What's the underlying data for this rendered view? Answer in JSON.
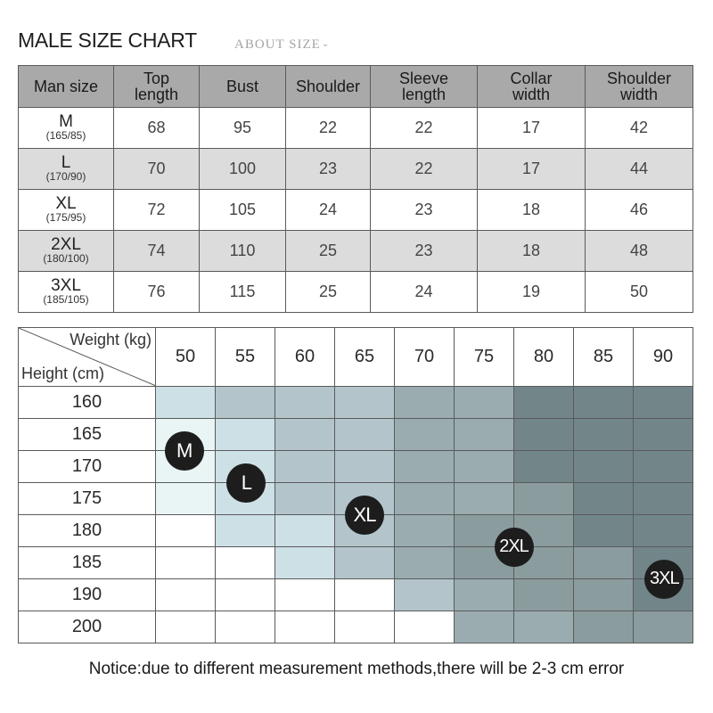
{
  "header": {
    "title": "MALE SIZE CHART",
    "about": "ABOUT SIZE",
    "about_icon": "chevron-down-icon"
  },
  "size_table": {
    "columns": [
      [
        "Man size"
      ],
      [
        "Top",
        "length"
      ],
      [
        "Bust"
      ],
      [
        "Shoulder"
      ],
      [
        "Sleeve",
        "length"
      ],
      [
        "Collar",
        "width"
      ],
      [
        "Shoulder",
        "width"
      ]
    ],
    "rows": [
      {
        "size": "M",
        "sub": "(165/85)",
        "values": [
          "68",
          "95",
          "22",
          "22",
          "17",
          "42"
        ]
      },
      {
        "size": "L",
        "sub": "(170/90)",
        "values": [
          "70",
          "100",
          "23",
          "22",
          "17",
          "44"
        ]
      },
      {
        "size": "XL",
        "sub": "(175/95)",
        "values": [
          "72",
          "105",
          "24",
          "23",
          "18",
          "46"
        ]
      },
      {
        "size": "2XL",
        "sub": "(180/100)",
        "values": [
          "74",
          "110",
          "25",
          "23",
          "18",
          "48"
        ]
      },
      {
        "size": "3XL",
        "sub": "(185/105)",
        "values": [
          "76",
          "115",
          "25",
          "24",
          "19",
          "50"
        ]
      }
    ]
  },
  "fit_table": {
    "weight_label": "Weight (kg)",
    "height_label": "Height (cm)",
    "weights": [
      "50",
      "55",
      "60",
      "65",
      "70",
      "75",
      "80",
      "85",
      "90"
    ],
    "heights": [
      "160",
      "165",
      "170",
      "175",
      "180",
      "185",
      "190",
      "200"
    ],
    "shade_colors": [
      "#ffffff",
      "#e9f4f5",
      "#cde0e5",
      "#b3c5ca",
      "#9aacb0",
      "#8b9c9f",
      "#72868a"
    ],
    "levels": [
      [
        2,
        3,
        3,
        3,
        4,
        4,
        6,
        6,
        6
      ],
      [
        1,
        2,
        3,
        3,
        4,
        4,
        6,
        6,
        6
      ],
      [
        1,
        2,
        3,
        3,
        4,
        4,
        6,
        6,
        6
      ],
      [
        1,
        2,
        3,
        3,
        4,
        4,
        5,
        6,
        6
      ],
      [
        0,
        2,
        2,
        3,
        4,
        5,
        5,
        6,
        6
      ],
      [
        0,
        0,
        2,
        3,
        4,
        5,
        5,
        5,
        6
      ],
      [
        0,
        0,
        0,
        0,
        3,
        4,
        5,
        5,
        6
      ],
      [
        0,
        0,
        0,
        0,
        0,
        4,
        4,
        5,
        5
      ]
    ],
    "badges": [
      {
        "label": "M",
        "weight": "50",
        "height": "165",
        "dx": 0.48,
        "dy": 1.0
      },
      {
        "label": "L",
        "weight": "55",
        "height": "170",
        "dx": 0.52,
        "dy": 1.0
      },
      {
        "label": "XL",
        "weight": "65",
        "height": "175",
        "dx": 0.5,
        "dy": 1.0
      },
      {
        "label": "2XL",
        "weight": "75",
        "height": "180",
        "dx": 1.0,
        "dy": 1.0
      },
      {
        "label": "3XL",
        "weight": "90",
        "height": "185",
        "dx": 0.52,
        "dy": 1.0
      }
    ]
  },
  "notice": "Notice:due to different measurement methods,there will be 2-3 cm error"
}
